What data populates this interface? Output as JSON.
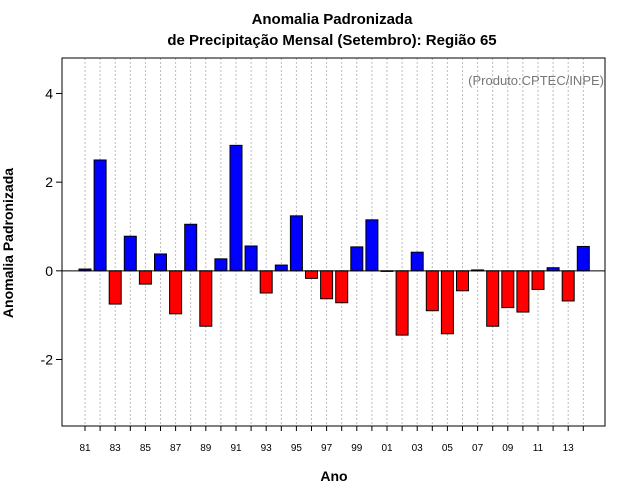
{
  "chart_data": {
    "type": "bar",
    "title": "Anomalia Padronizada",
    "subtitle": "de Precipitação Mensal (Setembro): Região 65",
    "xlabel": "Ano",
    "ylabel": "Anomalia Padronizada",
    "credit": "(Produto:CPTEC/INPE)",
    "ylim": [
      -3.5,
      4.8
    ],
    "yticks": [
      -2,
      0,
      2,
      4
    ],
    "ytick_labels": [
      "-2",
      "0",
      "2",
      "4"
    ],
    "grid": "vertical dotted lines at each year",
    "colors": {
      "positive": "#0000ff",
      "negative": "#ff0000",
      "grid": "#bbbbbb"
    },
    "years": [
      "1981",
      "1982",
      "1983",
      "1984",
      "1985",
      "1986",
      "1987",
      "1988",
      "1989",
      "1990",
      "1991",
      "1992",
      "1993",
      "1994",
      "1995",
      "1996",
      "1997",
      "1998",
      "1999",
      "2000",
      "2001",
      "2002",
      "2003",
      "2004",
      "2005",
      "2006",
      "2007",
      "2008",
      "2009",
      "2010",
      "2011",
      "2012",
      "2013",
      "2014"
    ],
    "tick_labels": [
      "81",
      "",
      "83",
      "",
      "85",
      "",
      "87",
      "",
      "89",
      "",
      "91",
      "",
      "93",
      "",
      "95",
      "",
      "97",
      "",
      "99",
      "",
      "01",
      "",
      "03",
      "",
      "05",
      "",
      "07",
      "",
      "09",
      "",
      "11",
      "",
      "13",
      ""
    ],
    "values": [
      0.04,
      2.5,
      -0.75,
      0.78,
      -0.3,
      0.38,
      -0.97,
      1.05,
      -1.25,
      0.27,
      2.83,
      0.56,
      -0.5,
      0.13,
      1.24,
      -0.17,
      -0.63,
      -0.72,
      0.54,
      1.15,
      0.0,
      -1.45,
      0.42,
      -0.9,
      -1.42,
      -0.45,
      0.02,
      -1.25,
      -0.83,
      -0.93,
      -0.42,
      0.07,
      -0.68,
      0.55
    ]
  }
}
